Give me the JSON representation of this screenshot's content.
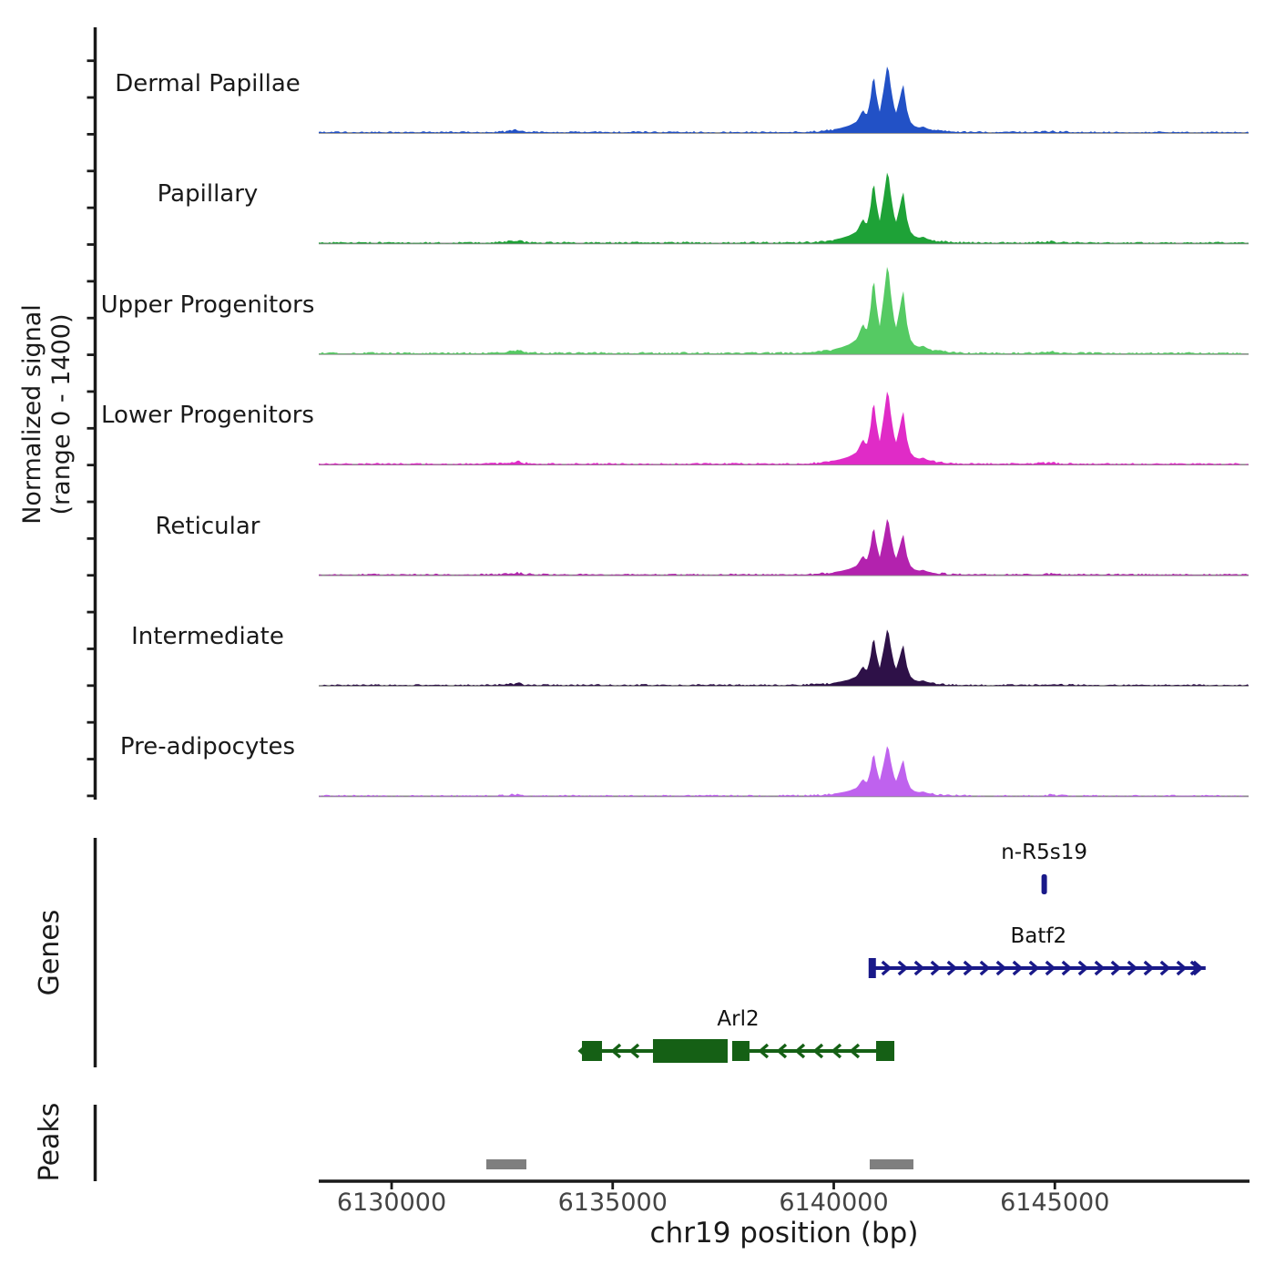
{
  "sections": {
    "signal_label_line1": "Normalized signal",
    "signal_label_line2": "(range 0 - 1400)",
    "genes_label": "Genes",
    "peaks_label": "Peaks"
  },
  "chart_data": {
    "type": "area",
    "title": "",
    "xlabel": "chr19 position (bp)",
    "ylabel": "Normalized signal (range 0 - 1400)",
    "x_axis": {
      "label": "chr19 position (bp)",
      "range_bp": [
        6128352,
        6149382
      ],
      "ticks": [
        6130000,
        6135000,
        6140000,
        6145000
      ],
      "tick_labels": [
        "6130000",
        "6135000",
        "6140000",
        "6145000"
      ]
    },
    "y_axis": {
      "per_track_range": [
        0,
        1400
      ]
    },
    "tracks": [
      {
        "label": "Dermal Papillae",
        "color": "#2251c6",
        "peak_max_signal": 900
      },
      {
        "label": "Papillary",
        "color": "#1ea237",
        "peak_max_signal": 960
      },
      {
        "label": "Upper Progenitors",
        "color": "#55ca63",
        "peak_max_signal": 1180
      },
      {
        "label": "Lower Progenitors",
        "color": "#e02bc7",
        "peak_max_signal": 990
      },
      {
        "label": "Reticular",
        "color": "#b322ae",
        "peak_max_signal": 760
      },
      {
        "label": "Intermediate",
        "color": "#2e1148",
        "peak_max_signal": 760
      },
      {
        "label": "Pre-adipocytes",
        "color": "#bf62ee",
        "peak_max_signal": 680
      }
    ],
    "signal_profile_norm": [
      [
        6128360,
        0.012
      ],
      [
        6129000,
        0.01
      ],
      [
        6129600,
        0.013
      ],
      [
        6130200,
        0.01
      ],
      [
        6130800,
        0.012
      ],
      [
        6131400,
        0.011
      ],
      [
        6132000,
        0.013
      ],
      [
        6132400,
        0.018
      ],
      [
        6132700,
        0.032
      ],
      [
        6132850,
        0.046
      ],
      [
        6133000,
        0.024
      ],
      [
        6133300,
        0.013
      ],
      [
        6133900,
        0.012
      ],
      [
        6134500,
        0.014
      ],
      [
        6135100,
        0.012
      ],
      [
        6135700,
        0.014
      ],
      [
        6136300,
        0.012
      ],
      [
        6136900,
        0.014
      ],
      [
        6137500,
        0.012
      ],
      [
        6138100,
        0.014
      ],
      [
        6138700,
        0.013
      ],
      [
        6139200,
        0.016
      ],
      [
        6139600,
        0.024
      ],
      [
        6139900,
        0.04
      ],
      [
        6140150,
        0.07
      ],
      [
        6140350,
        0.105
      ],
      [
        6140520,
        0.16
      ],
      [
        6140660,
        0.33
      ],
      [
        6140740,
        0.24
      ],
      [
        6140820,
        0.43
      ],
      [
        6140900,
        0.85
      ],
      [
        6140970,
        0.5
      ],
      [
        6141040,
        0.3
      ],
      [
        6141130,
        0.62
      ],
      [
        6141220,
        1.0
      ],
      [
        6141300,
        0.6
      ],
      [
        6141400,
        0.26
      ],
      [
        6141490,
        0.48
      ],
      [
        6141570,
        0.7
      ],
      [
        6141650,
        0.34
      ],
      [
        6141730,
        0.16
      ],
      [
        6141820,
        0.1
      ],
      [
        6141930,
        0.075
      ],
      [
        6142020,
        0.092
      ],
      [
        6142130,
        0.058
      ],
      [
        6142320,
        0.038
      ],
      [
        6142620,
        0.022
      ],
      [
        6143100,
        0.013
      ],
      [
        6143700,
        0.011
      ],
      [
        6144300,
        0.013
      ],
      [
        6144800,
        0.024
      ],
      [
        6144950,
        0.03
      ],
      [
        6145100,
        0.018
      ],
      [
        6145700,
        0.012
      ],
      [
        6146300,
        0.011
      ],
      [
        6146900,
        0.012
      ],
      [
        6147500,
        0.011
      ],
      [
        6148100,
        0.012
      ],
      [
        6148700,
        0.011
      ],
      [
        6149380,
        0.01
      ]
    ],
    "genes": [
      {
        "name": "n-R5s19",
        "type": "marker",
        "strand": "+",
        "start": 6144690,
        "end": 6144830,
        "color": "#191989"
      },
      {
        "name": "Batf2",
        "type": "arrow-line",
        "strand": "+",
        "start": 6140850,
        "end": 6148410,
        "color": "#191989"
      },
      {
        "name": "Arl2",
        "type": "exon-model",
        "strand": "-",
        "start": 6134305,
        "end": 6141370,
        "color": "#156015",
        "exons": [
          [
            6134305,
            6134758
          ],
          [
            6135911,
            6137600
          ],
          [
            6137703,
            6138094
          ],
          [
            6140958,
            6141370
          ]
        ]
      }
    ],
    "peak_regions": [
      [
        6132142,
        6133048
      ],
      [
        6140813,
        6141802
      ]
    ],
    "peak_color": "#7f7f7f"
  }
}
